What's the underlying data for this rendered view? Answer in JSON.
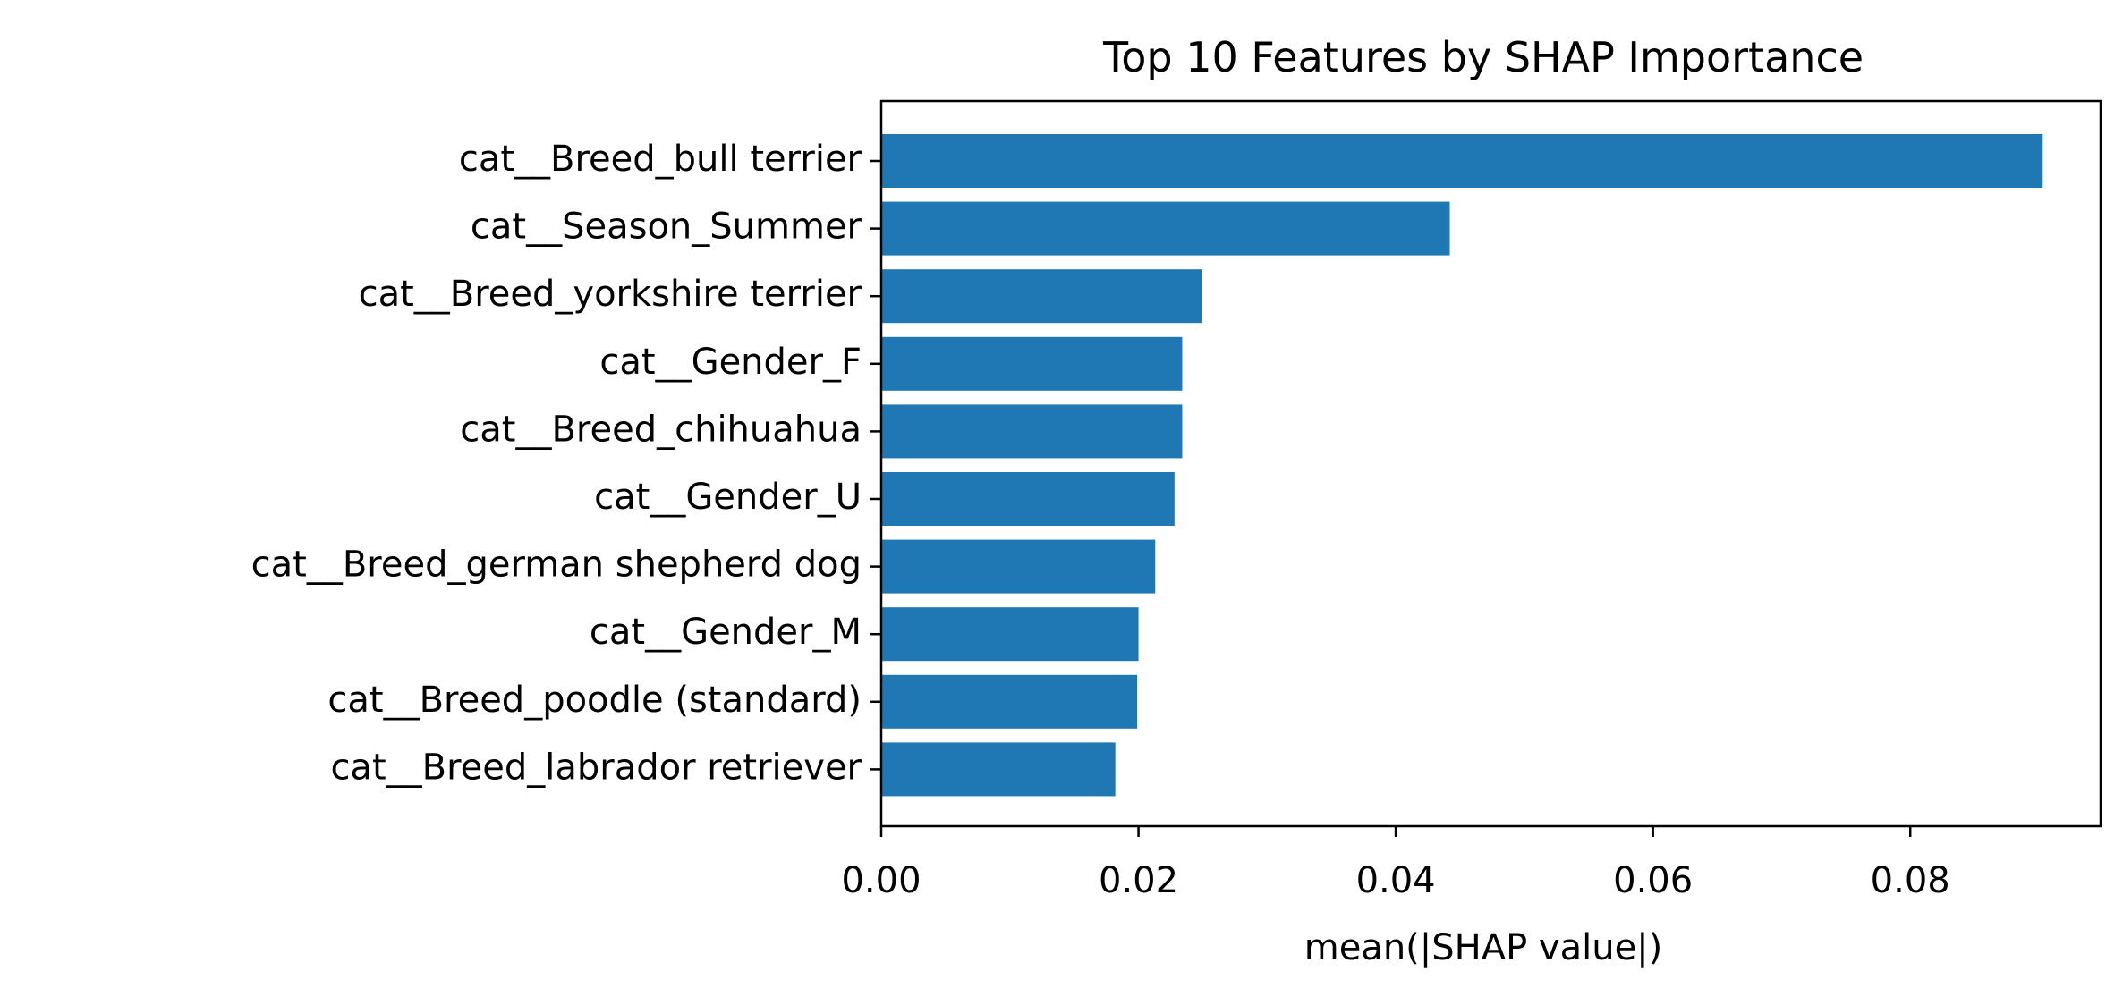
{
  "chart_data": {
    "type": "bar",
    "orientation": "horizontal",
    "title": "Top 10 Features by SHAP Importance",
    "xlabel": "mean(|SHAP value|)",
    "ylabel": "",
    "categories": [
      "cat__Breed_bull terrier",
      "cat__Season_Summer",
      "cat__Breed_yorkshire terrier",
      "cat__Gender_F",
      "cat__Breed_chihuahua",
      "cat__Gender_U",
      "cat__Breed_german shepherd dog",
      "cat__Gender_M",
      "cat__Breed_poodle (standard)",
      "cat__Breed_labrador retriever"
    ],
    "values": [
      0.0903,
      0.0442,
      0.0249,
      0.0234,
      0.0234,
      0.0228,
      0.0213,
      0.02,
      0.0199,
      0.0182
    ],
    "xlim": [
      0,
      0.0948
    ],
    "xticks": [
      0,
      0.02,
      0.04,
      0.06,
      0.08
    ],
    "xtick_labels": [
      "0.00",
      "0.02",
      "0.04",
      "0.06",
      "0.08"
    ],
    "grid": false,
    "legend": "none",
    "bar_color": "#1f77b4"
  }
}
